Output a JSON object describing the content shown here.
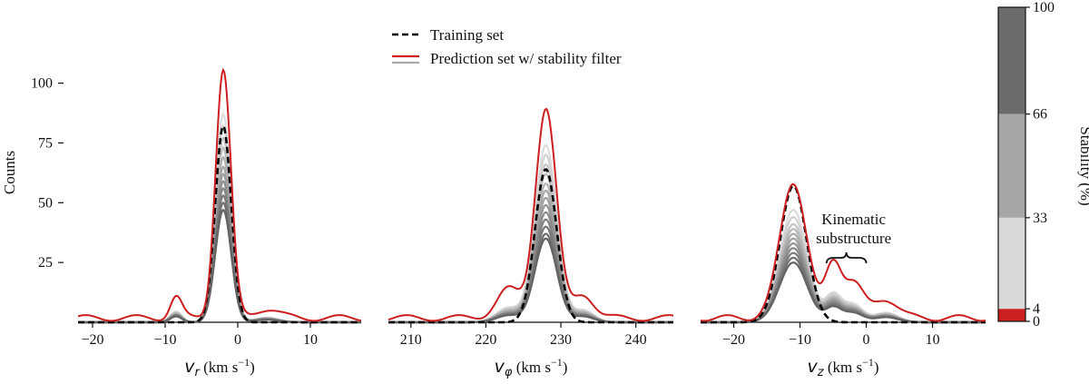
{
  "chart_data": {
    "type": "line",
    "y_axis": {
      "label": "Counts",
      "ticks": [
        25,
        50,
        75,
        100
      ],
      "tick_labels": [
        "25",
        "50",
        "75",
        "100"
      ],
      "ylim": [
        0,
        112
      ]
    },
    "legend": {
      "placement": "top-center",
      "entries": [
        {
          "label": "Training set",
          "style": "dashed",
          "color": "#000000"
        },
        {
          "label": "Prediction set w/ stability filter",
          "style": "solid",
          "color": "#cc1f1f",
          "secondary_color": "#aaaaaa"
        }
      ]
    },
    "colorbar": {
      "label": "Stability (%)",
      "ticks": [
        "0",
        "4",
        "33",
        "66",
        "100"
      ],
      "tick_values": [
        0,
        4,
        33,
        66,
        100
      ],
      "bands": [
        {
          "from": 0,
          "to": 4,
          "color": "#cc1f1f"
        },
        {
          "from": 4,
          "to": 33,
          "color": "#d9d9d9"
        },
        {
          "from": 33,
          "to": 66,
          "color": "#a6a6a6"
        },
        {
          "from": 66,
          "to": 100,
          "color": "#6b6b6b"
        }
      ]
    },
    "panels": [
      {
        "id": "vr",
        "xlabel": "v_r (km s⁻¹)",
        "xlabel_var": "v",
        "xlabel_sub": "r",
        "xlabel_unit_pre": " (km s",
        "xlabel_unit_sup": "−1",
        "xlabel_unit_post": ")",
        "xlim": [
          -22,
          17
        ],
        "xticks": [
          -20,
          -10,
          0,
          10
        ],
        "xtick_labels": [
          "−20",
          "−10",
          "0",
          "10"
        ],
        "peak_center": -2,
        "training": {
          "amp": 82,
          "sigma": 1.1,
          "base": 0
        },
        "red": {
          "amp": 104,
          "sigma": 1.05,
          "wings": [
            {
              "c": -8.5,
              "a": 9,
              "s": 0.8
            },
            {
              "c": 4,
              "a": 4,
              "s": 1.6
            }
          ],
          "base": 3
        },
        "gray_peaks": [
          87,
          82,
          77,
          73,
          69,
          65,
          62,
          59,
          56,
          53,
          50,
          47
        ]
      },
      {
        "id": "vphi",
        "xlabel": "v_φ (km s⁻¹)",
        "xlabel_var": "v",
        "xlabel_sub": "φ",
        "xlabel_unit_pre": " (km s",
        "xlabel_unit_sup": "−1",
        "xlabel_unit_post": ")",
        "xlim": [
          207,
          245
        ],
        "xticks": [
          210,
          220,
          230,
          240
        ],
        "xtick_labels": [
          "210",
          "220",
          "230",
          "240"
        ],
        "peak_center": 228,
        "training": {
          "amp": 64,
          "sigma": 1.45,
          "base": 0
        },
        "red": {
          "amp": 88,
          "sigma": 1.4,
          "wings": [
            {
              "c": 223,
              "a": 12,
              "s": 1.6
            },
            {
              "c": 233,
              "a": 10,
              "s": 1.4
            }
          ],
          "base": 3
        },
        "gray_peaks": [
          74,
          70,
          66,
          62,
          58,
          55,
          52,
          49,
          46,
          43,
          40,
          37,
          35
        ]
      },
      {
        "id": "vz",
        "xlabel": "v_z (km s⁻¹)",
        "xlabel_var": "v",
        "xlabel_sub": "z",
        "xlabel_unit_pre": " (km s",
        "xlabel_unit_sup": "−1",
        "xlabel_unit_post": ")",
        "xlim": [
          -25,
          18
        ],
        "xticks": [
          -20,
          -10,
          0,
          10
        ],
        "xtick_labels": [
          "−20",
          "−10",
          "0",
          "10"
        ],
        "peak_center": -11,
        "training": {
          "amp": 57,
          "sigma": 2.0,
          "base": 0
        },
        "red": {
          "amp": 57,
          "sigma": 2.0,
          "wings": [
            {
              "c": -5,
              "a": 22,
              "s": 1.2
            },
            {
              "c": -2,
              "a": 15,
              "s": 1.5
            },
            {
              "c": 3,
              "a": 8,
              "s": 1.8
            }
          ],
          "base": 3
        },
        "gray_peaks": [
          47,
          44,
          41,
          39,
          37,
          35,
          33,
          31,
          29,
          27,
          25
        ],
        "annotation": {
          "line1": "Kinematic",
          "line2": "substructure",
          "brace_from": -6,
          "brace_to": 0
        }
      }
    ]
  }
}
